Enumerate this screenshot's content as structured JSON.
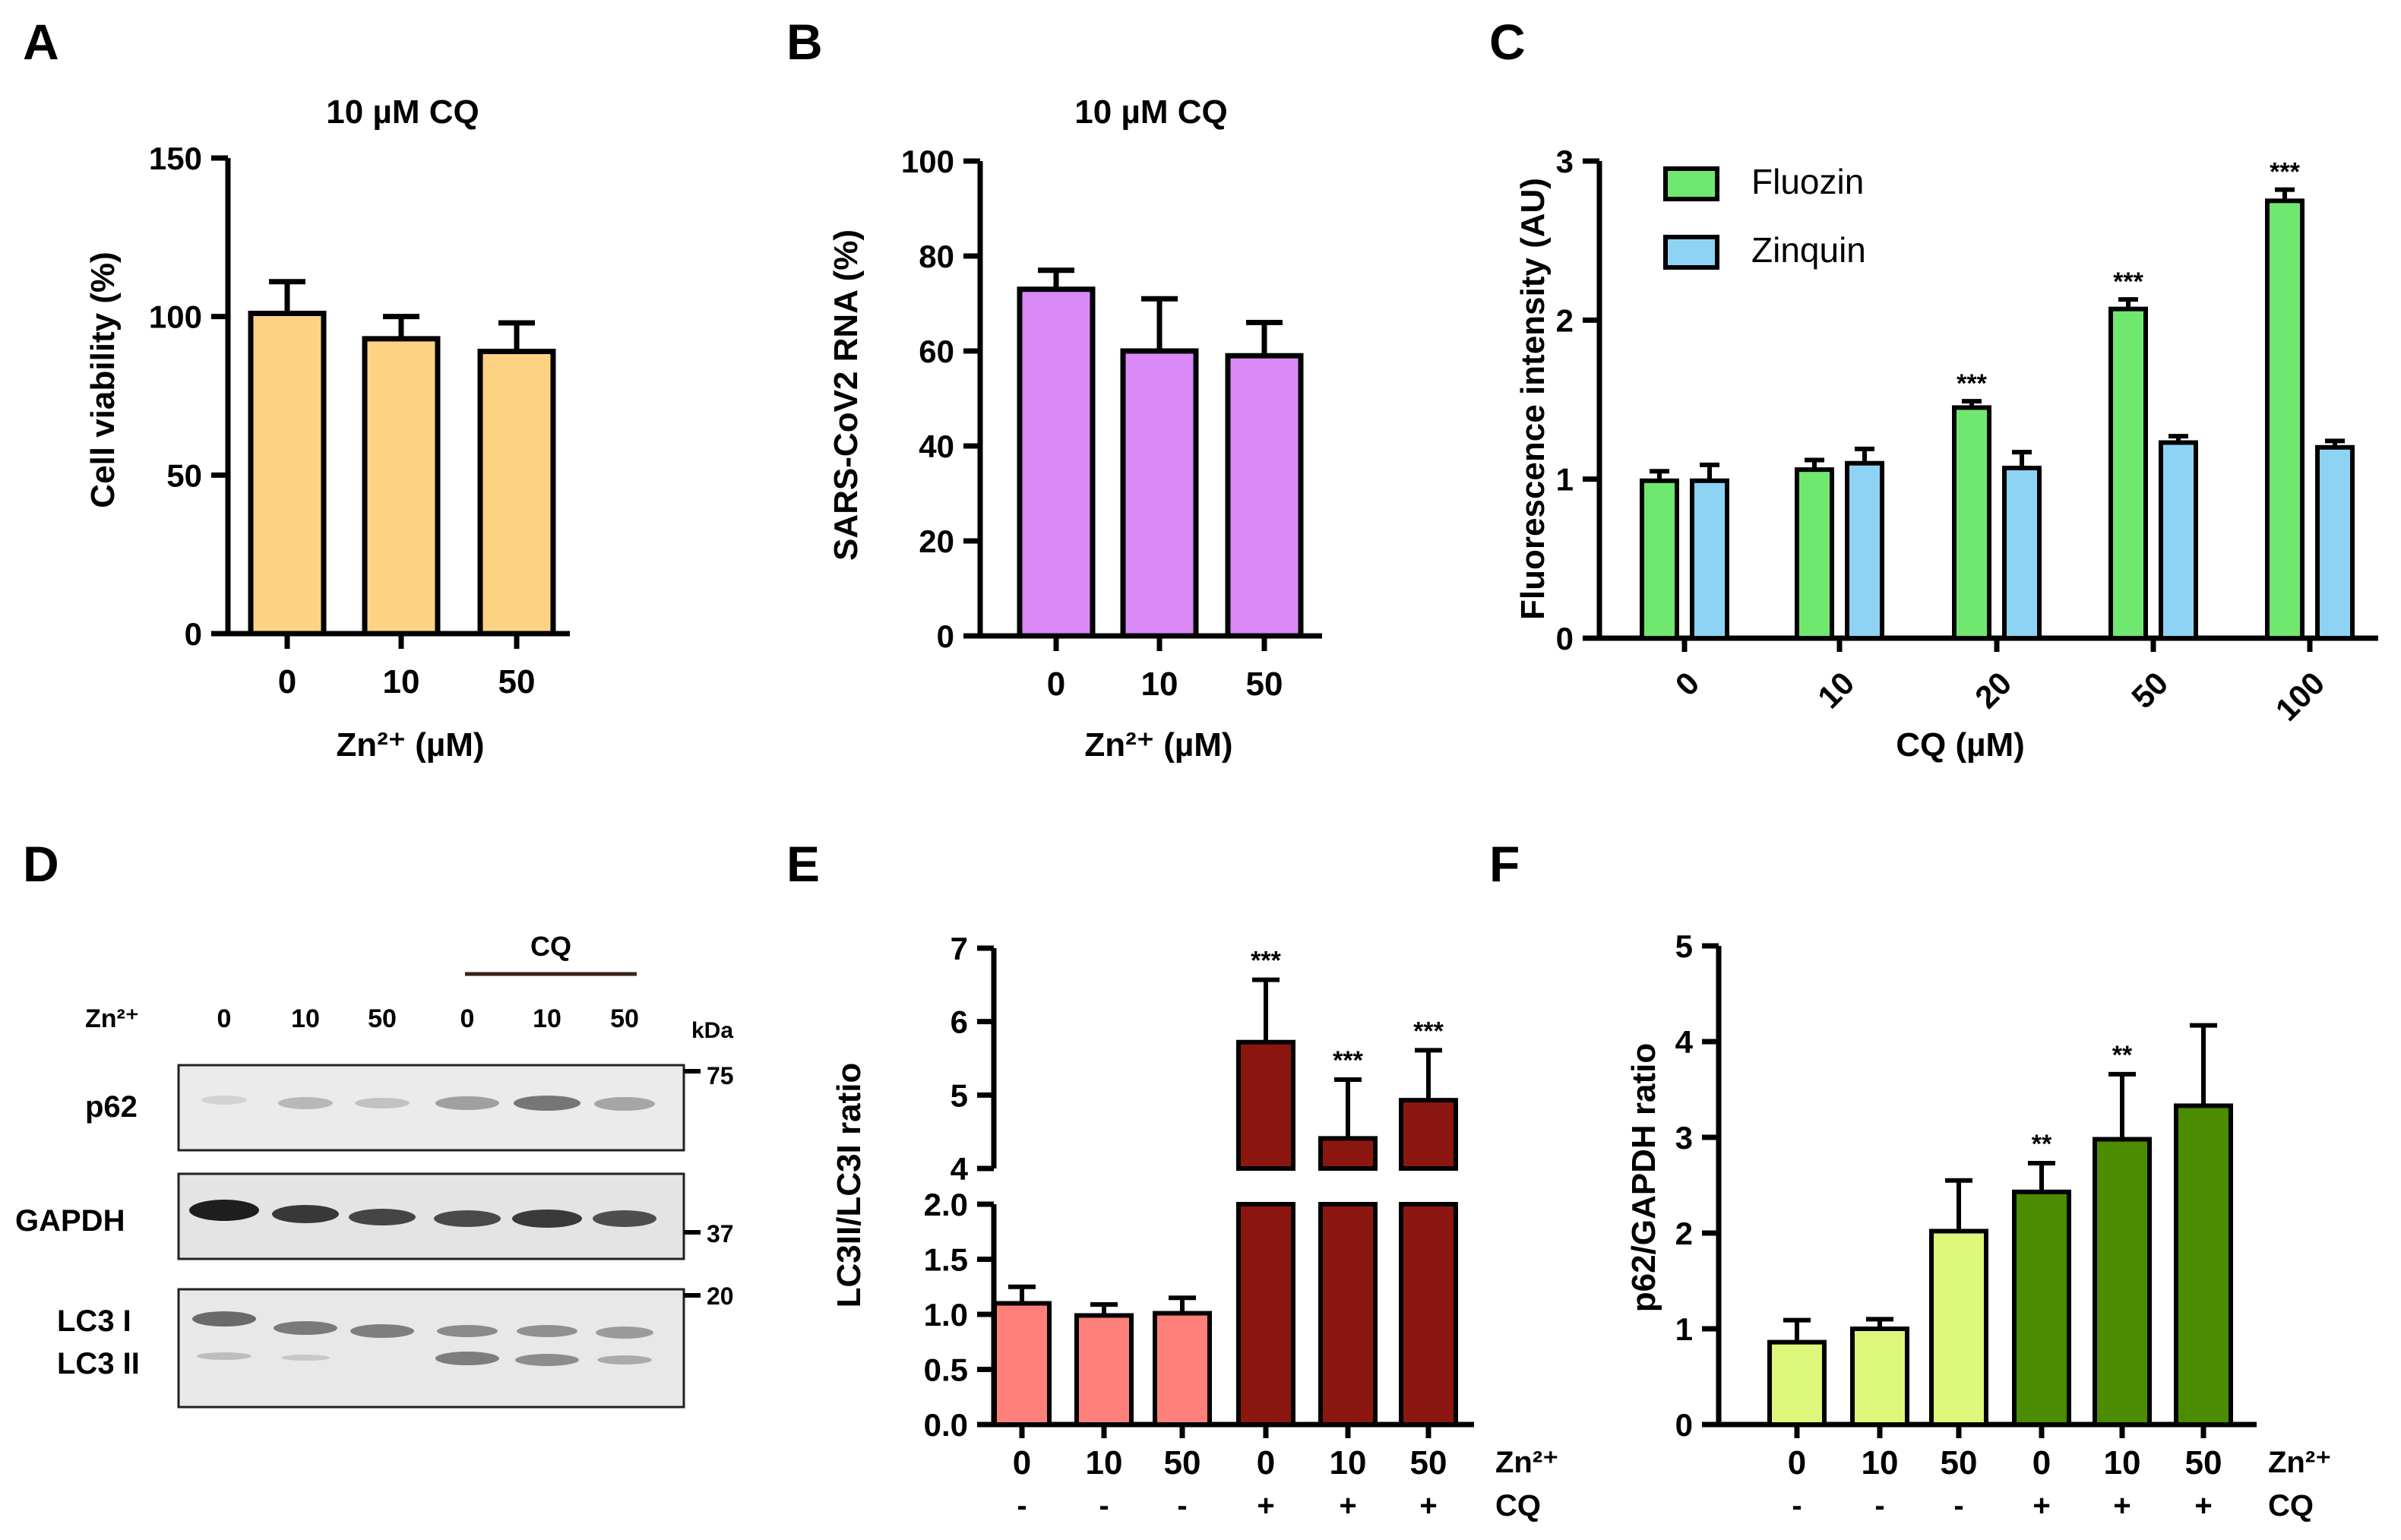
{
  "chart_data": [
    {
      "panel": "A",
      "type": "bar",
      "title": "10 µM CQ",
      "xlabel": "Zn²⁺  (µM)",
      "ylabel": "Cell viability (%)",
      "categories": [
        "0",
        "10",
        "50"
      ],
      "values": [
        101,
        93,
        89
      ],
      "errors": [
        10,
        7,
        9
      ],
      "ylim": [
        0,
        150
      ],
      "yticks": [
        "0",
        "50",
        "100",
        "150"
      ],
      "color": "#fdd282"
    },
    {
      "panel": "B",
      "type": "bar",
      "title": "10 µM CQ",
      "xlabel": "Zn²⁺  (µM)",
      "ylabel": "SARS-CoV2 RNA (%)",
      "categories": [
        "0",
        "10",
        "50"
      ],
      "values": [
        73,
        60,
        59
      ],
      "errors": [
        4,
        11,
        7
      ],
      "ylim": [
        0,
        100
      ],
      "yticks": [
        "0",
        "20",
        "40",
        "60",
        "80",
        "100"
      ],
      "color": "#d98af7"
    },
    {
      "panel": "C",
      "type": "bar",
      "xlabel": "CQ  (µM)",
      "ylabel": "Fluorescence intensity (AU)",
      "categories": [
        "0",
        "10",
        "20",
        "50",
        "100"
      ],
      "ylim": [
        0,
        3
      ],
      "yticks": [
        "0",
        "1",
        "2",
        "3"
      ],
      "series": [
        {
          "name": "Fluozin",
          "values": [
            0.99,
            1.06,
            1.45,
            2.07,
            2.75
          ],
          "errors": [
            0.06,
            0.06,
            0.04,
            0.06,
            0.07
          ],
          "color": "#70e870"
        },
        {
          "name": "Zinquin",
          "values": [
            0.99,
            1.1,
            1.07,
            1.23,
            1.2
          ],
          "errors": [
            0.1,
            0.09,
            0.1,
            0.04,
            0.04
          ],
          "color": "#8ed3f4"
        }
      ],
      "significance": [
        "",
        "",
        "***",
        "***",
        "***"
      ]
    },
    {
      "panel": "E",
      "type": "bar",
      "ylabel": "LC3II/LC3I ratio",
      "categories": [
        "0",
        "10",
        "50",
        "0",
        "10",
        "50"
      ],
      "values": [
        1.1,
        0.99,
        1.01,
        5.72,
        4.41,
        4.93
      ],
      "errors": [
        0.15,
        0.1,
        0.14,
        0.85,
        0.8,
        0.68
      ],
      "colors": [
        "#ff7f7a",
        "#ff7f7a",
        "#ff7f7a",
        "#8b1710",
        "#8b1710",
        "#8b1710"
      ],
      "significance": [
        "",
        "",
        "",
        "***",
        "***",
        "***"
      ],
      "row_labels": [
        "Zn²⁺",
        "CQ"
      ],
      "cq_signs": [
        "-",
        "-",
        "-",
        "+",
        "+",
        "+"
      ],
      "yticks_lower": [
        "0.0",
        "0.5",
        "1.0",
        "1.5",
        "2.0"
      ],
      "yticks_upper": [
        "4",
        "5",
        "6",
        "7"
      ],
      "axis_break": [
        2.0,
        4.0
      ]
    },
    {
      "panel": "F",
      "type": "bar",
      "ylabel": "p62/GAPDH ratio",
      "categories": [
        "0",
        "10",
        "50",
        "0",
        "10",
        "50"
      ],
      "values": [
        0.86,
        1.0,
        2.02,
        2.43,
        2.98,
        3.33
      ],
      "errors": [
        0.23,
        0.1,
        0.53,
        0.3,
        0.68,
        0.84
      ],
      "colors": [
        "#ddf77a",
        "#ddf77a",
        "#ddf77a",
        "#4b8c00",
        "#4b8c00",
        "#4b8c00"
      ],
      "significance": [
        "",
        "",
        "",
        "**",
        "**",
        ""
      ],
      "row_labels": [
        "Zn²⁺",
        "CQ"
      ],
      "cq_signs": [
        "-",
        "-",
        "-",
        "+",
        "+",
        "+"
      ],
      "ylim": [
        0,
        5
      ],
      "yticks": [
        "0",
        "1",
        "2",
        "3",
        "4",
        "5"
      ]
    }
  ],
  "panel_labels": [
    "A",
    "B",
    "C",
    "D",
    "E",
    "F"
  ],
  "blot": {
    "treatment": "CQ",
    "zn_label": "Zn²⁺",
    "lanes": [
      "0",
      "10",
      "50",
      "0",
      "10",
      "50"
    ],
    "kda_label": "kDa",
    "markers": [
      "75",
      "37",
      "20"
    ],
    "rows": [
      "p62",
      "GAPDH",
      "LC3 I",
      "LC3 II"
    ]
  }
}
